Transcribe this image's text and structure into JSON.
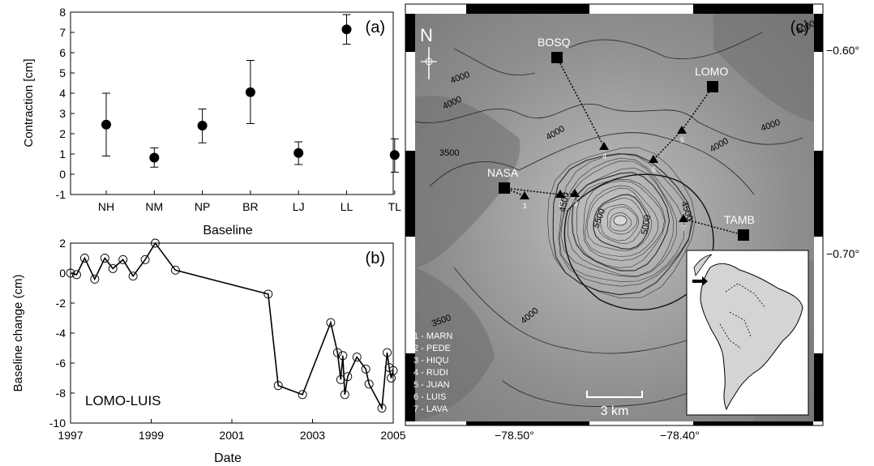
{
  "chart_data": [
    {
      "type": "scatter",
      "panel": "(a)",
      "xlabel": "Baseline",
      "ylabel": "Contraction [cm]",
      "categories": [
        "NH",
        "NM",
        "NP",
        "BR",
        "LJ",
        "LL",
        "TL"
      ],
      "values": [
        2.45,
        0.82,
        2.4,
        4.05,
        1.05,
        7.15,
        0.95
      ],
      "err_low": [
        0.9,
        0.35,
        1.55,
        2.5,
        0.48,
        6.42,
        0.1
      ],
      "err_high": [
        4.0,
        1.3,
        3.22,
        5.62,
        1.6,
        7.88,
        1.75
      ],
      "ylim": [
        -1,
        8
      ],
      "yticks": [
        "-1",
        "0",
        "1",
        "2",
        "3",
        "4",
        "5",
        "6",
        "7",
        "8"
      ]
    },
    {
      "type": "line",
      "panel": "(b)",
      "annotation": "LOMO-LUIS",
      "xlabel": "Date",
      "ylabel": "Baseline change (cm)",
      "xlim": [
        1997,
        2005
      ],
      "ylim": [
        -10,
        2
      ],
      "xticks": [
        "1997",
        "1999",
        "2001",
        "2003",
        "2005"
      ],
      "yticks": [
        "-10",
        "-8",
        "-6",
        "-4",
        "-2",
        "0",
        "2"
      ],
      "x": [
        1997.0,
        1997.15,
        1997.35,
        1997.6,
        1997.85,
        1998.05,
        1998.3,
        1998.55,
        1998.85,
        1999.1,
        1999.6,
        2001.9,
        2002.15,
        2002.75,
        2003.45,
        2003.62,
        2003.7,
        2003.75,
        2003.8,
        2003.87,
        2004.1,
        2004.32,
        2004.4,
        2004.72,
        2004.85,
        2004.9,
        2004.95,
        2005.0
      ],
      "y": [
        0.0,
        -0.1,
        1.0,
        -0.4,
        1.0,
        0.3,
        0.9,
        -0.2,
        0.9,
        2.0,
        0.2,
        -1.4,
        -7.5,
        -8.1,
        -3.3,
        -5.3,
        -7.1,
        -5.5,
        -8.1,
        -6.9,
        -5.6,
        -6.4,
        -7.4,
        -9.0,
        -5.3,
        -6.3,
        -7.0,
        -6.5
      ]
    },
    {
      "type": "map",
      "panel": "(c)",
      "north_label": "N",
      "x_tick_labels": [
        "−78.50°",
        "−78.40°"
      ],
      "y_tick_labels": [
        "−0.60°",
        "−0.70°"
      ],
      "stations": [
        {
          "name": "BOSQ",
          "lon": -78.46,
          "lat": -0.593
        },
        {
          "name": "LOMO",
          "lon": -78.38,
          "lat": -0.612
        },
        {
          "name": "NASA",
          "lon": -78.49,
          "lat": -0.663
        },
        {
          "name": "TAMB",
          "lon": -78.37,
          "lat": -0.69
        }
      ],
      "reflectors": [
        {
          "id": "1",
          "lon": -78.475,
          "lat": -0.665
        },
        {
          "id": "2",
          "lon": -78.46,
          "lat": -0.665
        },
        {
          "id": "3",
          "lon": -78.455,
          "lat": -0.665
        },
        {
          "id": "4",
          "lon": -78.44,
          "lat": -0.64
        },
        {
          "id": "5",
          "lon": -78.412,
          "lat": -0.632
        },
        {
          "id": "6",
          "lon": -78.422,
          "lat": -0.647
        },
        {
          "id": "7",
          "lon": -78.402,
          "lat": -0.682
        }
      ],
      "contour_labels": [
        "4000",
        "4000",
        "4000",
        "4000",
        "3500",
        "4000",
        "4500",
        "4500",
        "5000",
        "5500",
        "3500",
        "4000",
        "4000"
      ],
      "legend": [
        "1 - MARN",
        "2 - PEDE",
        "3 - HIQU",
        "4 - RUDI",
        "5 - JUAN",
        "6 - LUIS",
        "7 - LAVA"
      ],
      "scale_bar_label": "3 km"
    }
  ]
}
